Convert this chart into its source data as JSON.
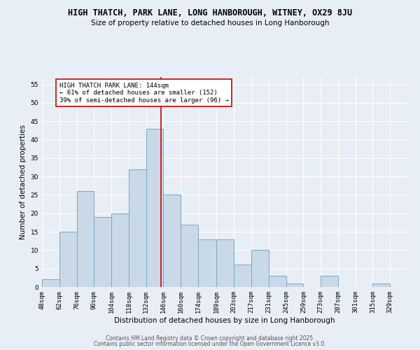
{
  "title1": "HIGH THATCH, PARK LANE, LONG HANBOROUGH, WITNEY, OX29 8JU",
  "title2": "Size of property relative to detached houses in Long Hanborough",
  "xlabel": "Distribution of detached houses by size in Long Hanborough",
  "ylabel": "Number of detached properties",
  "bins": [
    "48sqm",
    "62sqm",
    "76sqm",
    "90sqm",
    "104sqm",
    "118sqm",
    "132sqm",
    "146sqm",
    "160sqm",
    "174sqm",
    "189sqm",
    "203sqm",
    "217sqm",
    "231sqm",
    "245sqm",
    "259sqm",
    "273sqm",
    "287sqm",
    "301sqm",
    "315sqm",
    "329sqm"
  ],
  "values": [
    2,
    15,
    26,
    19,
    20,
    32,
    43,
    25,
    17,
    13,
    13,
    6,
    10,
    3,
    1,
    0,
    3,
    0,
    0,
    1,
    0
  ],
  "bin_edges": [
    48,
    62,
    76,
    90,
    104,
    118,
    132,
    146,
    160,
    174,
    189,
    203,
    217,
    231,
    245,
    259,
    273,
    287,
    301,
    315,
    329,
    343
  ],
  "bar_color": "#c9d9e8",
  "bar_edge_color": "#7aa8c8",
  "vline_x": 144,
  "vline_color": "#cc0000",
  "annotation_title": "HIGH THATCH PARK LANE: 144sqm",
  "annotation_line1": "← 61% of detached houses are smaller (152)",
  "annotation_line2": "39% of semi-detached houses are larger (96) →",
  "annotation_box_color": "#ffffff",
  "annotation_box_edge": "#cc0000",
  "background_color": "#e8eef5",
  "ylim": [
    0,
    57
  ],
  "yticks": [
    0,
    5,
    10,
    15,
    20,
    25,
    30,
    35,
    40,
    45,
    50,
    55
  ],
  "footer1": "Contains HM Land Registry data © Crown copyright and database right 2025.",
  "footer2": "Contains public sector information licensed under the Open Government Licence v3.0.",
  "title1_fontsize": 8.5,
  "title2_fontsize": 7.5,
  "axis_label_fontsize": 7.5,
  "tick_fontsize": 6.5,
  "annotation_fontsize": 6.5,
  "footer_fontsize": 5.5
}
